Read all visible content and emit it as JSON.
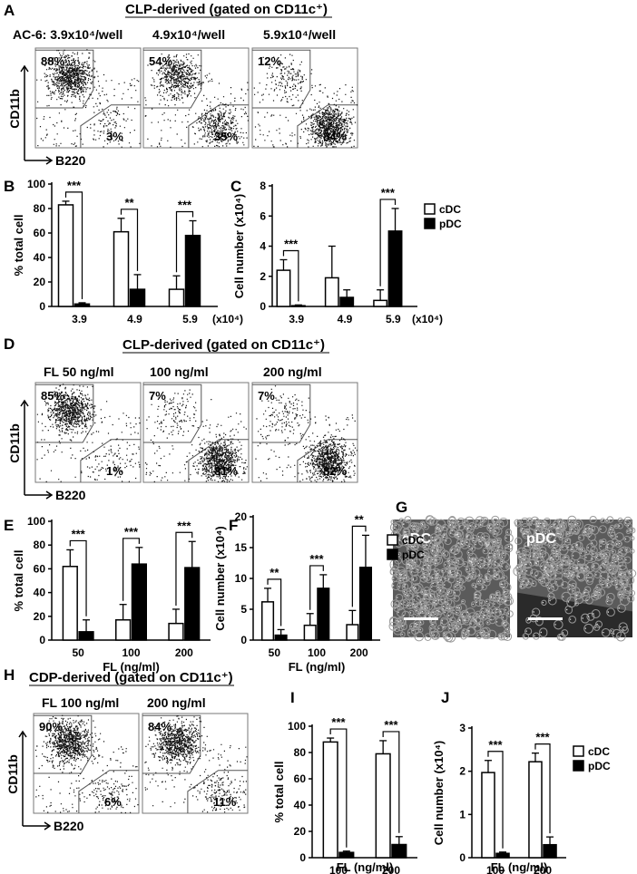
{
  "panels": {
    "A": {
      "label": "A",
      "title": "CLP-derived (gated on CD11c⁺)",
      "conditions": [
        "AC-6: 3.9x10⁴/well",
        "4.9x10⁴/well",
        "5.9x10⁴/well"
      ],
      "upper_pct": [
        "88%",
        "54%",
        "12%"
      ],
      "lower_pct": [
        "3%",
        "35%",
        "84%"
      ],
      "y_axis": "CD11b",
      "x_axis": "B220",
      "upper_density": [
        0.88,
        0.54,
        0.12
      ],
      "lower_density": [
        0.03,
        0.35,
        0.84
      ]
    },
    "D": {
      "label": "D",
      "title": "CLP-derived (gated on CD11c⁺)",
      "conditions": [
        "FL  50 ng/ml",
        "100 ng/ml",
        "200 ng/ml"
      ],
      "upper_pct": [
        "85%",
        "7%",
        "7%"
      ],
      "lower_pct": [
        "1%",
        "81%",
        "82%"
      ],
      "y_axis": "CD11b",
      "x_axis": "B220",
      "upper_density": [
        0.85,
        0.07,
        0.07
      ],
      "lower_density": [
        0.01,
        0.81,
        0.82
      ]
    },
    "H": {
      "label": "H",
      "title": "CDP-derived (gated on CD11c⁺)",
      "conditions": [
        "FL 100 ng/ml",
        "200 ng/ml"
      ],
      "upper_pct": [
        "90%",
        "84%"
      ],
      "lower_pct": [
        "6%",
        "11%"
      ],
      "y_axis": "CD11b",
      "x_axis": "B220",
      "upper_density": [
        0.9,
        0.84
      ],
      "lower_density": [
        0.06,
        0.11
      ]
    },
    "G": {
      "label": "G",
      "images": [
        "cDC",
        "pDC"
      ]
    }
  },
  "legend": {
    "cdc": "cDC",
    "pdc": "pDC"
  },
  "chart_data": [
    {
      "id": "B",
      "label": "B",
      "type": "bar",
      "categories": [
        "3.9",
        "4.9",
        "5.9"
      ],
      "x_suffix": "(x10⁴)",
      "ylabel": "% total cell",
      "xlabel": "",
      "ylim": [
        0,
        100
      ],
      "yticks": [
        0,
        20,
        40,
        60,
        80,
        100
      ],
      "series": [
        {
          "name": "cDC",
          "values": [
            83,
            61,
            14
          ],
          "errors": [
            3,
            11,
            11
          ]
        },
        {
          "name": "pDC",
          "values": [
            2,
            14,
            58
          ],
          "errors": [
            1,
            12,
            12
          ]
        }
      ],
      "significance": [
        "***",
        "**",
        "***"
      ],
      "legend": false
    },
    {
      "id": "C",
      "label": "C",
      "type": "bar",
      "categories": [
        "3.9",
        "4.9",
        "5.9"
      ],
      "x_suffix": "(x10⁴)",
      "ylabel": "Cell number (x10⁴)",
      "xlabel": "",
      "ylim": [
        0,
        8
      ],
      "yticks": [
        0,
        2,
        4,
        6,
        8
      ],
      "series": [
        {
          "name": "cDC",
          "values": [
            2.4,
            1.9,
            0.4
          ],
          "errors": [
            0.7,
            2.1,
            0.7
          ]
        },
        {
          "name": "pDC",
          "values": [
            0.05,
            0.6,
            5.0
          ],
          "errors": [
            0.05,
            0.5,
            1.5
          ]
        }
      ],
      "significance": [
        "***",
        "",
        "***"
      ],
      "legend": true
    },
    {
      "id": "E",
      "label": "E",
      "type": "bar",
      "categories": [
        "50",
        "100",
        "200"
      ],
      "x_suffix": "",
      "ylabel": "% total cell",
      "xlabel": "FL (ng/ml)",
      "ylim": [
        0,
        100
      ],
      "yticks": [
        0,
        20,
        40,
        60,
        80,
        100
      ],
      "series": [
        {
          "name": "cDC",
          "values": [
            62,
            17,
            14
          ],
          "errors": [
            14,
            13,
            12
          ]
        },
        {
          "name": "pDC",
          "values": [
            7,
            64,
            61
          ],
          "errors": [
            10,
            14,
            22
          ]
        }
      ],
      "significance": [
        "***",
        "***",
        "***"
      ],
      "legend": false
    },
    {
      "id": "F",
      "label": "F",
      "type": "bar",
      "categories": [
        "50",
        "100",
        "200"
      ],
      "x_suffix": "",
      "ylabel": "Cell number (x10⁴)",
      "xlabel": "FL (ng/ml)",
      "ylim": [
        0,
        20
      ],
      "yticks": [
        0,
        5,
        10,
        15,
        20
      ],
      "series": [
        {
          "name": "cDC",
          "values": [
            6.2,
            2.4,
            2.5
          ],
          "errors": [
            2.2,
            1.9,
            2.3
          ]
        },
        {
          "name": "pDC",
          "values": [
            0.8,
            8.4,
            11.8
          ],
          "errors": [
            0.9,
            2.2,
            5.2
          ]
        }
      ],
      "significance": [
        "**",
        "***",
        "**"
      ],
      "legend": true
    },
    {
      "id": "I",
      "label": "I",
      "type": "bar",
      "categories": [
        "100",
        "200"
      ],
      "x_suffix": "",
      "ylabel": "% total cell",
      "xlabel": "FL (ng/ml)",
      "ylim": [
        0,
        100
      ],
      "yticks": [
        0,
        20,
        40,
        60,
        80,
        100
      ],
      "series": [
        {
          "name": "cDC",
          "values": [
            88,
            79
          ],
          "errors": [
            3,
            10
          ]
        },
        {
          "name": "pDC",
          "values": [
            4,
            10
          ],
          "errors": [
            1,
            6
          ]
        }
      ],
      "significance": [
        "***",
        "***"
      ],
      "legend": false
    },
    {
      "id": "J",
      "label": "J",
      "type": "bar",
      "categories": [
        "100",
        "200"
      ],
      "x_suffix": "",
      "ylabel": "Cell number (x10⁴)",
      "xlabel": "FL (ng/ml)",
      "ylim": [
        0,
        3
      ],
      "yticks": [
        0,
        1,
        2,
        3
      ],
      "series": [
        {
          "name": "cDC",
          "values": [
            1.97,
            2.22
          ],
          "errors": [
            0.28,
            0.2
          ]
        },
        {
          "name": "pDC",
          "values": [
            0.1,
            0.3
          ],
          "errors": [
            0.03,
            0.18
          ]
        }
      ],
      "significance": [
        "***",
        "***"
      ],
      "legend": true
    }
  ]
}
